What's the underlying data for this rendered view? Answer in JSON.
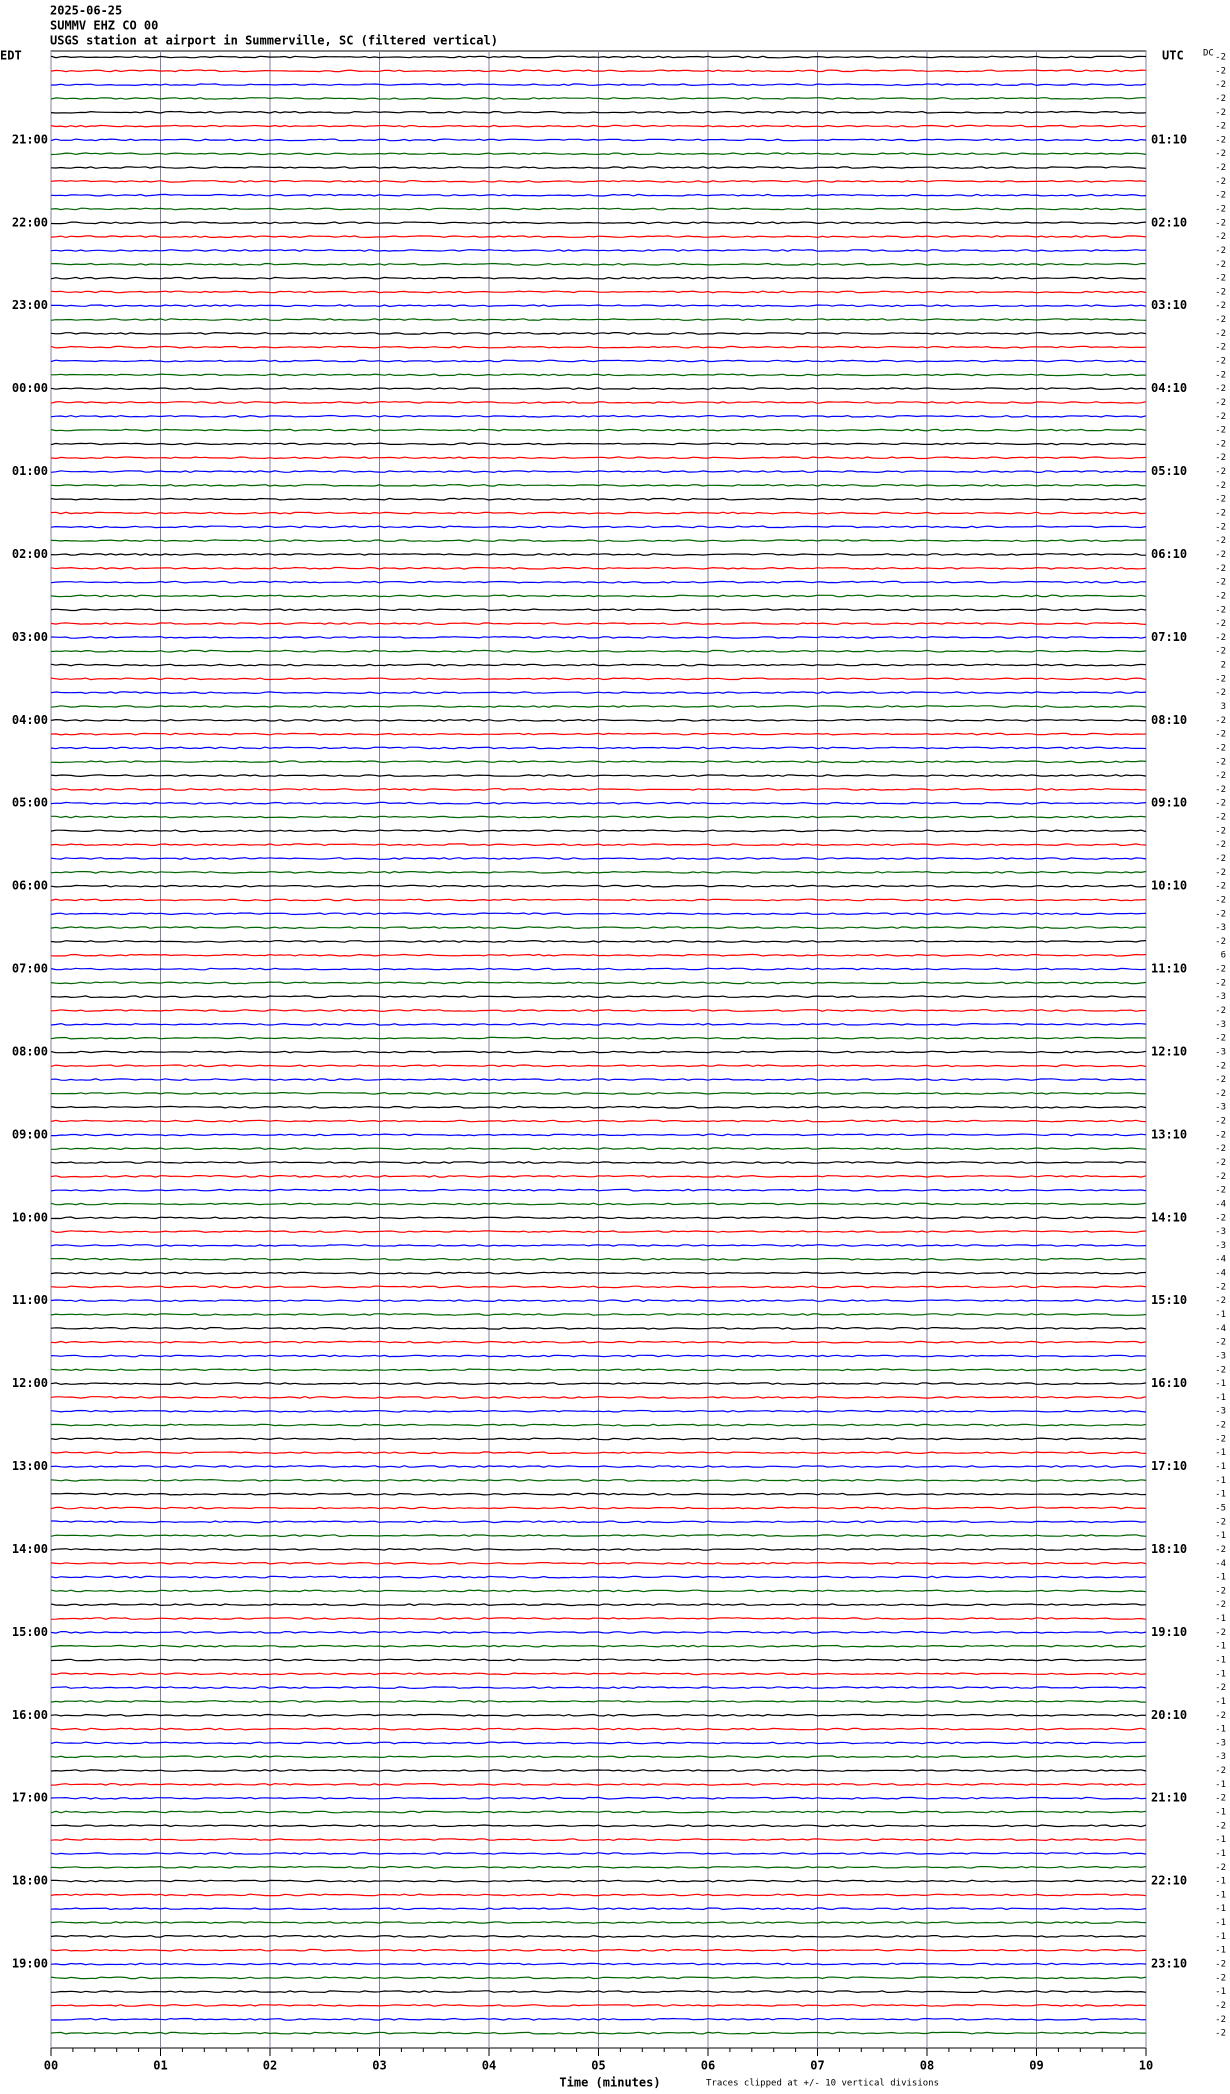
{
  "header": {
    "date": "2025-06-25",
    "station": "SUMMV EHZ CO 00",
    "description": "USGS station at airport in Summerville, SC (filtered vertical)"
  },
  "left_zone": "EDT",
  "right_zone": "UTC",
  "dc_label": "DC",
  "left_labels": [
    "21:00",
    "22:00",
    "23:00",
    "00:00",
    "01:00",
    "02:00",
    "03:00",
    "04:00",
    "05:00",
    "06:00",
    "07:00",
    "08:00",
    "09:00",
    "10:00",
    "11:00",
    "12:00",
    "13:00",
    "14:00",
    "15:00",
    "16:00",
    "17:00",
    "18:00",
    "19:00"
  ],
  "right_labels": [
    "01:10",
    "02:10",
    "03:10",
    "04:10",
    "05:10",
    "06:10",
    "07:10",
    "08:10",
    "09:10",
    "10:10",
    "11:10",
    "12:10",
    "13:10",
    "14:10",
    "15:10",
    "16:10",
    "17:10",
    "18:10",
    "19:10",
    "20:10",
    "21:10",
    "22:10",
    "23:10"
  ],
  "dc_values": [
    -2,
    -2,
    -2,
    -2,
    -2,
    -2,
    -2,
    -2,
    -2,
    -2,
    -2,
    -2,
    -2,
    -2,
    -2,
    -2,
    -2,
    -2,
    -2,
    -2,
    -2,
    -2,
    -2,
    -2,
    -2,
    -2,
    -2,
    -2,
    -2,
    -2,
    -2,
    -2,
    -2,
    -2,
    -2,
    -2,
    -2,
    -2,
    -2,
    -2,
    -2,
    -2,
    -2,
    -2,
    2,
    -2,
    -2,
    3,
    -2,
    -2,
    -2,
    -2,
    -2,
    -2,
    -2,
    -2,
    -2,
    -2,
    -2,
    -2,
    -2,
    -2,
    -2,
    -3,
    -2,
    6,
    -2,
    -2,
    -3,
    -2,
    -3,
    -2,
    -3,
    -2,
    -2,
    -2,
    -3,
    -2,
    -2,
    -2,
    -2,
    -2,
    -2,
    -4,
    -2,
    -3,
    -3,
    -4,
    -4,
    -2,
    -2,
    -1,
    -4,
    -2,
    -3,
    -2,
    -1,
    -1,
    -3,
    -2,
    -2,
    -1,
    -1,
    -1,
    -1,
    -5,
    -2,
    -1,
    -2,
    -4,
    -1,
    -2,
    -2,
    -1,
    -2,
    -1,
    -1,
    -1,
    -2,
    -1,
    -2,
    -1,
    -3,
    -3,
    -2,
    -1,
    -2,
    -1,
    -2,
    -1,
    -1,
    -2,
    -1,
    -1,
    -1,
    -1,
    -1,
    -1,
    -2,
    -2,
    -1,
    -2,
    -2,
    -2
  ],
  "x_axis": {
    "title": "Time (minutes)",
    "note": "Traces clipped at +/- 10 vertical divisions",
    "xlim": [
      0,
      10
    ],
    "xticks": [
      {
        "value": 0,
        "label": "00"
      },
      {
        "value": 1,
        "label": "01"
      },
      {
        "value": 2,
        "label": "02"
      },
      {
        "value": 3,
        "label": "03"
      },
      {
        "value": 4,
        "label": "04"
      },
      {
        "value": 5,
        "label": "05"
      },
      {
        "value": 6,
        "label": "06"
      },
      {
        "value": 7,
        "label": "07"
      },
      {
        "value": 8,
        "label": "08"
      },
      {
        "value": 9,
        "label": "09"
      },
      {
        "value": 10,
        "label": "10"
      }
    ]
  },
  "trace_colors": [
    "#000000",
    "#ff0000",
    "#0000ff",
    "#006400"
  ]
}
